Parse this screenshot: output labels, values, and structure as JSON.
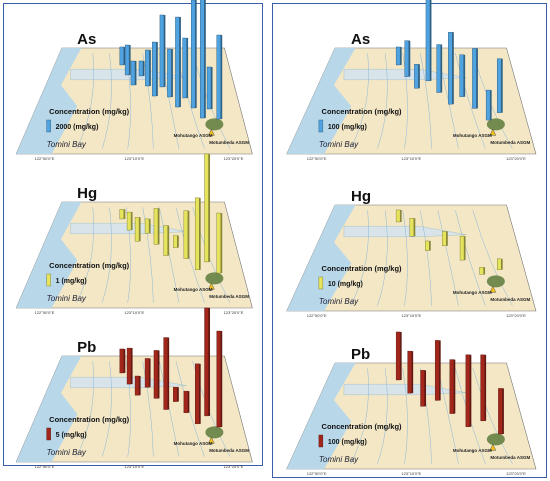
{
  "map_labels": {
    "bay": "Tomini Bay",
    "asgm1": "Mohutango ASGM",
    "asgm2": "Motumbeda ASGM",
    "legend_title": "Concentration (mg/kg)",
    "lon": [
      "122°50'0\"E",
      "123°10'0\"E",
      "123°20'0\"E"
    ]
  },
  "panels": [
    {
      "element": "As",
      "legend": {
        "value": 2000,
        "label": "2000 (mg/kg)"
      },
      "color": "#4fa3e0",
      "concentrations": [
        3000,
        5000,
        4000,
        2500,
        6000,
        9000,
        12000,
        8000,
        15000,
        10000,
        18000,
        21000,
        7000,
        14000
      ]
    },
    {
      "element": "Hg",
      "legend": {
        "value": 1,
        "label": "1 (mg/kg)"
      },
      "color": "#e6e35c",
      "concentrations": [
        0.8,
        1.5,
        2,
        1.2,
        3,
        2.5,
        1,
        4,
        6,
        9,
        5
      ]
    },
    {
      "element": "Pb",
      "legend": {
        "value": 5,
        "label": "5 (mg/kg)"
      },
      "color": "#a3261b",
      "concentrations": [
        10,
        15,
        8,
        12,
        20,
        30,
        6,
        9,
        25,
        45,
        40
      ]
    },
    {
      "element": "As",
      "legend": {
        "value": 100,
        "label": "100 (mg/kg)"
      },
      "color": "#4fa3e0",
      "concentrations": [
        150,
        300,
        200,
        1200,
        400,
        600,
        350,
        500,
        250,
        450
      ]
    },
    {
      "element": "Hg",
      "legend": {
        "value": 10,
        "label": "10 (mg/kg)"
      },
      "color": "#e6e35c",
      "concentrations": [
        10,
        15,
        8,
        12,
        20,
        6,
        9
      ]
    },
    {
      "element": "Pb",
      "legend": {
        "value": 100,
        "label": "100 (mg/kg)"
      },
      "color": "#a3261b",
      "concentrations": [
        400,
        350,
        300,
        500,
        450,
        600,
        550,
        380
      ]
    }
  ]
}
